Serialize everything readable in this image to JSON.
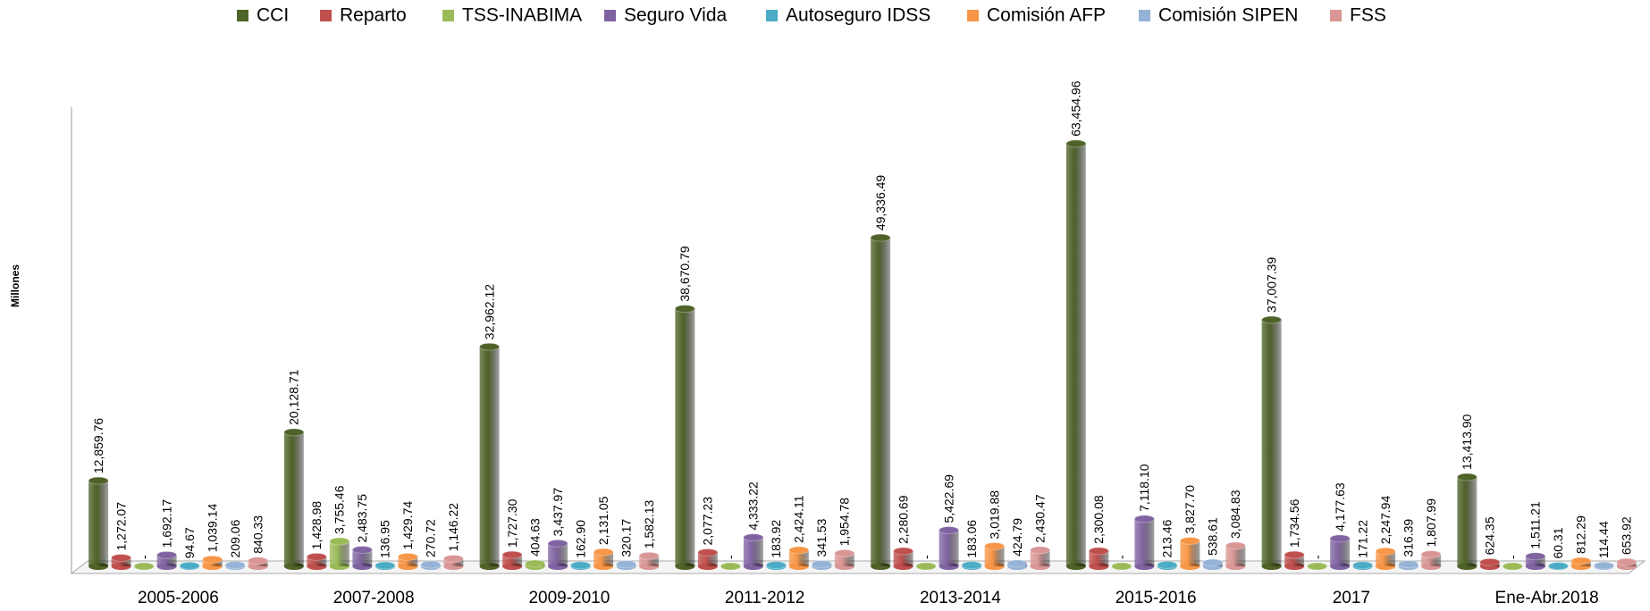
{
  "chart_data": {
    "type": "bar",
    "y_label": "Millones",
    "categories": [
      "2005-2006",
      "2007-2008",
      "2009-2010",
      "2011-2012",
      "2013-2014",
      "2015-2016",
      "2017",
      "Ene-Abr.2018"
    ],
    "ylim": [
      0,
      70000
    ],
    "series": [
      {
        "name": "CCI",
        "color": "#4f6228",
        "values": [
          12859.76,
          20128.71,
          32962.12,
          38670.79,
          49336.49,
          63454.96,
          37007.39,
          13413.9
        ],
        "value_labels": [
          "12,859.76",
          "20,128.71",
          "32,962.12",
          "38,670.79",
          "49,336.49",
          "63,454.96",
          "37,007.39",
          "13,413.90"
        ]
      },
      {
        "name": "Reparto",
        "color": "#c0504d",
        "values": [
          1272.07,
          1428.98,
          1727.3,
          2077.23,
          2280.69,
          2300.08,
          1734.56,
          624.35
        ],
        "value_labels": [
          "1,272.07",
          "1,428.98",
          "1,727.30",
          "2,077.23",
          "2,280.69",
          "2,300.08",
          "1,734.56",
          "624.35"
        ]
      },
      {
        "name": "TSS-INABIMA",
        "color": "#9bbb59",
        "values": [
          0,
          3755.46,
          404.63,
          0,
          0,
          0,
          0,
          0
        ],
        "value_labels": [
          "-",
          "3,755.46",
          "404.63",
          "-",
          "-",
          "-",
          "-",
          "-"
        ]
      },
      {
        "name": "Seguro Vida",
        "color": "#8064a2",
        "values": [
          1692.17,
          2483.75,
          3437.97,
          4333.22,
          5422.69,
          7118.1,
          4177.63,
          1511.21
        ],
        "value_labels": [
          "1,692.17",
          "2,483.75",
          "3,437.97",
          "4,333.22",
          "5,422.69",
          "7,118.10",
          "4,177.63",
          "1,511.21"
        ]
      },
      {
        "name": "Autoseguro IDSS",
        "color": "#4bacc6",
        "values": [
          94.67,
          136.95,
          162.9,
          183.92,
          183.06,
          213.46,
          171.22,
          60.31
        ],
        "value_labels": [
          "94.67",
          "136.95",
          "162.90",
          "183.92",
          "183.06",
          "213.46",
          "171.22",
          "60.31"
        ]
      },
      {
        "name": "Comisión AFP",
        "color": "#f79646",
        "values": [
          1039.14,
          1429.74,
          2131.05,
          2424.11,
          3019.88,
          3827.7,
          2247.94,
          812.29
        ],
        "value_labels": [
          "1,039.14",
          "1,429.74",
          "2,131.05",
          "2,424.11",
          "3,019.88",
          "3,827.70",
          "2,247.94",
          "812.29"
        ]
      },
      {
        "name": "Comisión SIPEN",
        "color": "#95b3d7",
        "values": [
          209.06,
          270.72,
          320.17,
          341.53,
          424.79,
          538.61,
          316.39,
          114.44
        ],
        "value_labels": [
          "209.06",
          "270.72",
          "320.17",
          "341.53",
          "424.79",
          "538.61",
          "316.39",
          "114.44"
        ]
      },
      {
        "name": "FSS",
        "color": "#d99694",
        "values": [
          840.33,
          1146.22,
          1582.13,
          1954.78,
          2430.47,
          3084.83,
          1807.99,
          653.92
        ],
        "value_labels": [
          "840.33",
          "1,146.22",
          "1,582.13",
          "1,954.78",
          "2,430.47",
          "3,084.83",
          "1,807.99",
          "653.92"
        ]
      }
    ]
  }
}
